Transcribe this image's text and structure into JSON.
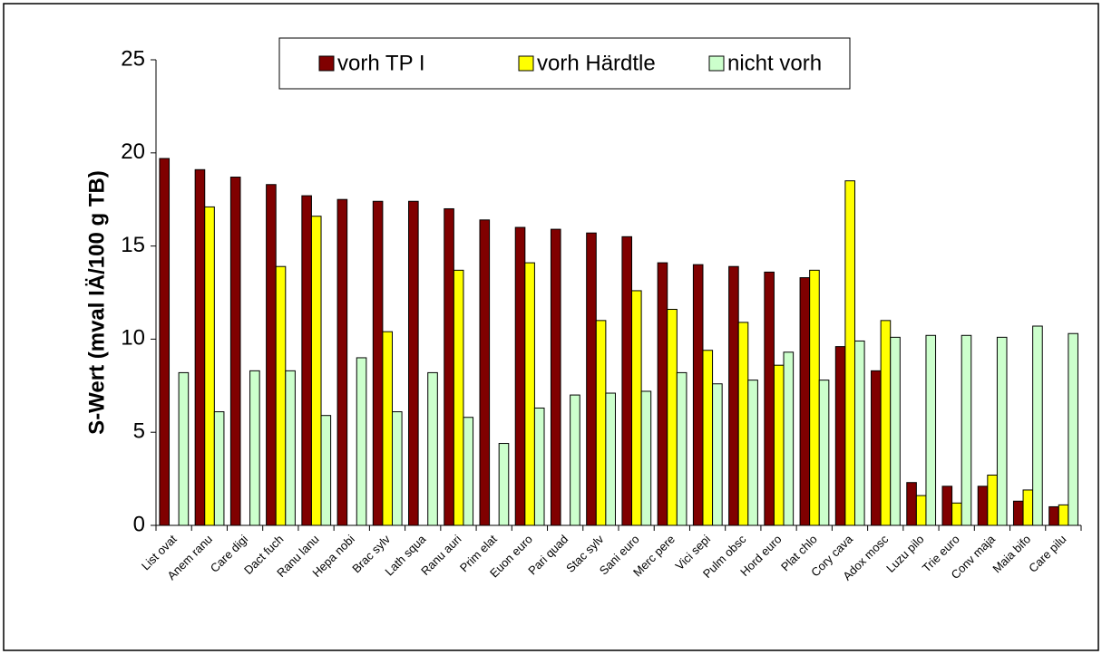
{
  "chart_data": {
    "type": "bar",
    "y_label": "S-Wert (mval IÄ/100 g TB)",
    "categories": [
      "List ovat",
      "Anem ranu",
      "Care digi",
      "Dact fuch",
      "Ranu lanu",
      "Hepa nobi",
      "Brac sylv",
      "Lath squa",
      "Ranu auri",
      "Prim elat",
      "Euon euro",
      "Pari quad",
      "Stac sylv",
      "Sani euro",
      "Merc pere",
      "Vici sepi",
      "Pulm obsc",
      "Hord euro",
      "Plat chlo",
      "Cory cava",
      "Adox mosc",
      "Luzu pilo",
      "Trie euro",
      "Conv maja",
      "Maia bifo",
      "Care pilu"
    ],
    "series": [
      {
        "name": "vorh TP I",
        "color": "#800000",
        "values": [
          19.7,
          19.1,
          18.7,
          18.3,
          17.7,
          17.5,
          17.4,
          17.4,
          17.0,
          16.4,
          16.0,
          15.9,
          15.7,
          15.5,
          14.1,
          14.0,
          13.9,
          13.6,
          13.3,
          9.6,
          8.3,
          2.3,
          2.1,
          2.1,
          1.3,
          1.0
        ]
      },
      {
        "name": "vorh Härdtle",
        "color": "#ffff00",
        "values": [
          null,
          17.1,
          null,
          13.9,
          16.6,
          null,
          10.4,
          null,
          13.7,
          null,
          14.1,
          null,
          11.0,
          12.6,
          11.6,
          9.4,
          10.9,
          8.6,
          13.7,
          18.5,
          11.0,
          1.6,
          1.2,
          2.7,
          1.9,
          1.1
        ]
      },
      {
        "name": "nicht vorh",
        "color": "#ccffcc",
        "values": [
          8.2,
          6.1,
          8.3,
          8.3,
          5.9,
          9.0,
          6.1,
          8.2,
          5.8,
          4.4,
          6.3,
          7.0,
          7.1,
          7.2,
          8.2,
          7.6,
          7.8,
          9.3,
          7.8,
          9.9,
          10.1,
          10.2,
          10.2,
          10.1,
          10.7,
          10.3
        ]
      }
    ],
    "ylim": [
      0,
      25
    ],
    "yticks": [
      0,
      5,
      10,
      15,
      20,
      25
    ],
    "grid": false,
    "legend": "top"
  }
}
